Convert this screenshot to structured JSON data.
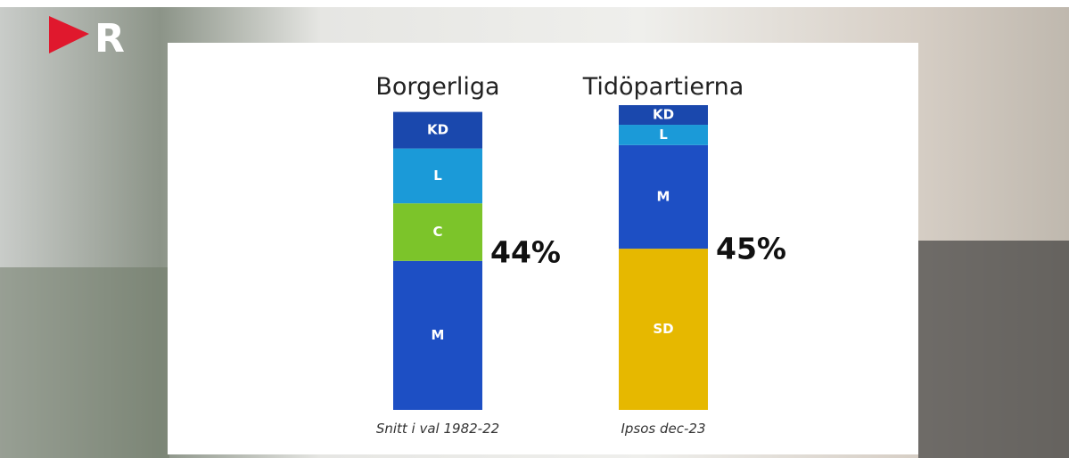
{
  "logo": "R",
  "chart_data": [
    {
      "type": "stacked-bar",
      "title": "Borgerliga",
      "caption": "Snitt i val 1982-22",
      "total": 44,
      "total_label": "44%",
      "segments": [
        {
          "name": "M",
          "color": "#1d4fc4",
          "value": 22.0
        },
        {
          "name": "C",
          "color": "#7cc42a",
          "value": 8.5
        },
        {
          "name": "L",
          "color": "#1b9ad8",
          "value": 8.1
        },
        {
          "name": "KD",
          "color": "#1a48ad",
          "value": 5.4
        }
      ]
    },
    {
      "type": "stacked-bar",
      "title": "Tidöpartierna",
      "caption": "Ipsos dec-23",
      "total": 45,
      "total_label": "45%",
      "segments": [
        {
          "name": "SD",
          "color": "#e6b800",
          "value": 23.8
        },
        {
          "name": "M",
          "color": "#1d4fc4",
          "value": 15.3
        },
        {
          "name": "L",
          "color": "#1b9ad8",
          "value": 3.0
        },
        {
          "name": "KD",
          "color": "#1a48ad",
          "value": 2.9
        }
      ]
    }
  ]
}
